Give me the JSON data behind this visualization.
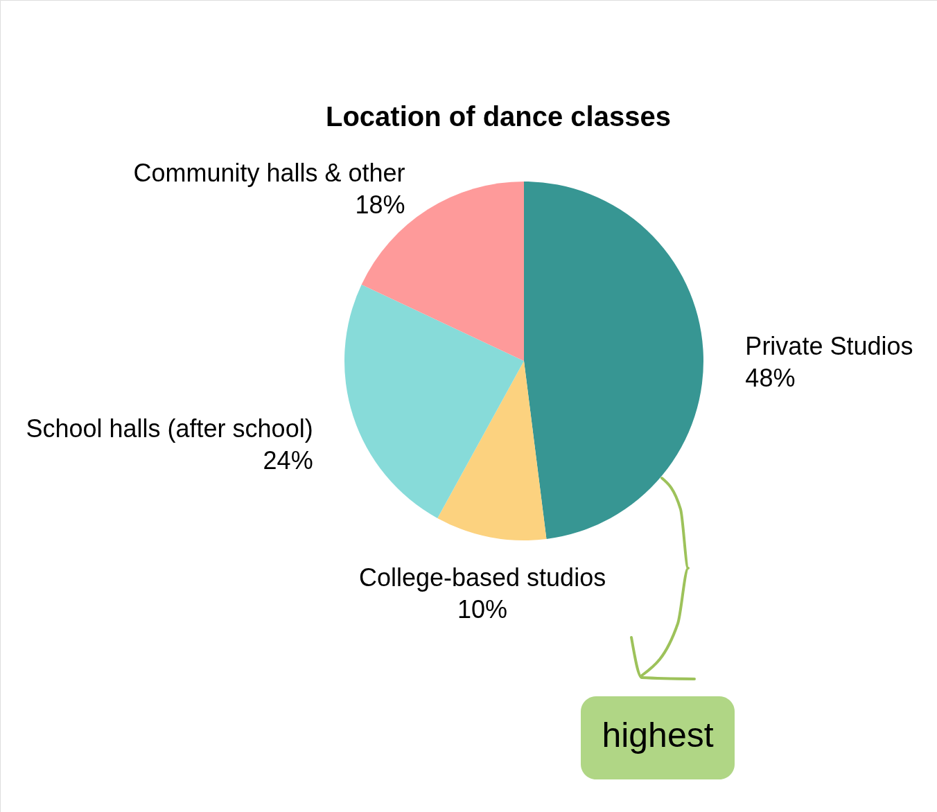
{
  "chart_data": {
    "type": "pie",
    "title": "Location of dance classes",
    "categories": [
      "Private Studios",
      "College-based studios",
      "School halls (after school)",
      "Community halls & other"
    ],
    "values": [
      48,
      10,
      24,
      18
    ],
    "colors": [
      "#379693",
      "#fcd27f",
      "#87dbd9",
      "#fe9a9a"
    ],
    "value_labels": [
      "48%",
      "10%",
      "24%",
      "18%"
    ],
    "annotations": [
      "highest"
    ]
  }
}
